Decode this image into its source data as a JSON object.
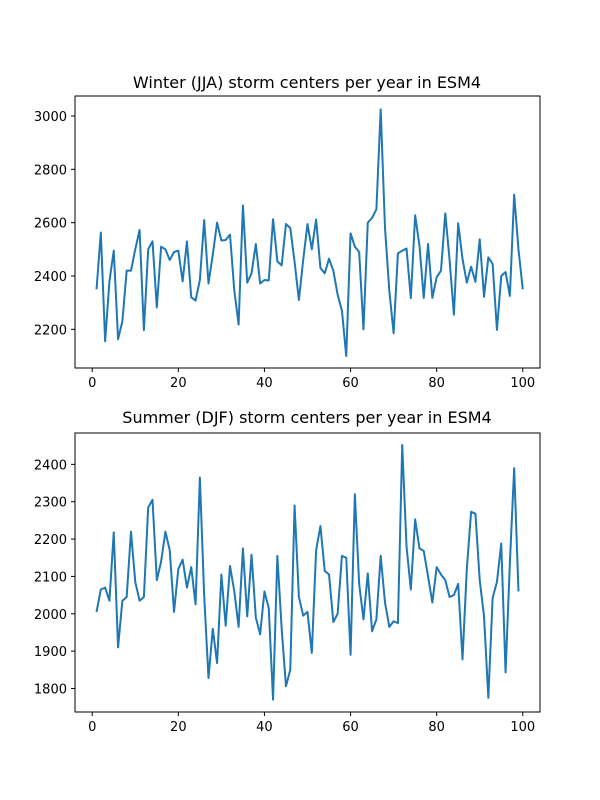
{
  "chart_data": [
    {
      "type": "line",
      "title": "Winter (JJA) storm centers per year in ESM4",
      "xlabel": "",
      "ylabel": "",
      "xlim": [
        -4,
        104
      ],
      "ylim": [
        2055,
        3075
      ],
      "xticks": [
        0,
        20,
        40,
        60,
        80,
        100
      ],
      "yticks": [
        2200,
        2400,
        2600,
        2800,
        3000
      ],
      "grid": false,
      "color": "#1f77b4",
      "series": [
        {
          "x": [
            1,
            2,
            3,
            4,
            5,
            6,
            7,
            8,
            9,
            10,
            11,
            12,
            13,
            14,
            15,
            16,
            17,
            18,
            19,
            20,
            21,
            22,
            23,
            24,
            25,
            26,
            27,
            28,
            29,
            30,
            31,
            32,
            33,
            34,
            35,
            36,
            37,
            38,
            39,
            40,
            41,
            42,
            43,
            44,
            45,
            46,
            47,
            48,
            49,
            50,
            51,
            52,
            53,
            54,
            55,
            56,
            57,
            58,
            59,
            60,
            61,
            62,
            63,
            64,
            65,
            66,
            67,
            68,
            69,
            70,
            71,
            72,
            73,
            74,
            75,
            76,
            77,
            78,
            79,
            80,
            81,
            82,
            83,
            84,
            85,
            86,
            87,
            88,
            89,
            90,
            91,
            92,
            93,
            94,
            95,
            96,
            97,
            98,
            99,
            100
          ],
          "values": [
            2350,
            2563,
            2155,
            2380,
            2495,
            2163,
            2230,
            2420,
            2420,
            2500,
            2573,
            2197,
            2500,
            2530,
            2282,
            2510,
            2500,
            2460,
            2490,
            2495,
            2380,
            2530,
            2320,
            2308,
            2385,
            2610,
            2372,
            2480,
            2600,
            2533,
            2535,
            2555,
            2345,
            2218,
            2665,
            2375,
            2410,
            2520,
            2372,
            2385,
            2383,
            2613,
            2455,
            2440,
            2595,
            2580,
            2453,
            2310,
            2460,
            2595,
            2500,
            2612,
            2430,
            2410,
            2465,
            2420,
            2330,
            2270,
            2100,
            2560,
            2510,
            2490,
            2200,
            2600,
            2618,
            2650,
            3025,
            2580,
            2345,
            2185,
            2485,
            2495,
            2503,
            2317,
            2628,
            2515,
            2318,
            2520,
            2318,
            2395,
            2420,
            2635,
            2460,
            2255,
            2598,
            2465,
            2375,
            2435,
            2378,
            2538,
            2322,
            2470,
            2445,
            2198,
            2400,
            2415,
            2325,
            2705,
            2500,
            2350
          ]
        }
      ]
    },
    {
      "type": "line",
      "title": "Summer (DJF) storm centers per year in ESM4",
      "xlabel": "",
      "ylabel": "",
      "xlim": [
        -4,
        104
      ],
      "ylim": [
        1737,
        2484
      ],
      "xticks": [
        0,
        20,
        40,
        60,
        80,
        100
      ],
      "yticks": [
        1800,
        1900,
        2000,
        2100,
        2200,
        2300,
        2400
      ],
      "grid": false,
      "color": "#1f77b4",
      "series": [
        {
          "x": [
            1,
            2,
            3,
            4,
            5,
            6,
            7,
            8,
            9,
            10,
            11,
            12,
            13,
            14,
            15,
            16,
            17,
            18,
            19,
            20,
            21,
            22,
            23,
            24,
            25,
            26,
            27,
            28,
            29,
            30,
            31,
            32,
            33,
            34,
            35,
            36,
            37,
            38,
            39,
            40,
            41,
            42,
            43,
            44,
            45,
            46,
            47,
            48,
            49,
            50,
            51,
            52,
            53,
            54,
            55,
            56,
            57,
            58,
            59,
            60,
            61,
            62,
            63,
            64,
            65,
            66,
            67,
            68,
            69,
            70,
            71,
            72,
            73,
            74,
            75,
            76,
            77,
            78,
            79,
            80,
            81,
            82,
            83,
            84,
            85,
            86,
            87,
            88,
            89,
            90,
            91,
            92,
            93,
            94,
            95,
            96,
            97,
            98,
            99
          ],
          "values": [
            2005,
            2065,
            2070,
            2035,
            2218,
            1910,
            2035,
            2045,
            2220,
            2085,
            2035,
            2045,
            2285,
            2305,
            2090,
            2140,
            2220,
            2170,
            2005,
            2120,
            2145,
            2070,
            2125,
            2025,
            2365,
            2050,
            1828,
            1960,
            1868,
            2105,
            1968,
            2128,
            2060,
            1965,
            2175,
            1993,
            2158,
            1990,
            1945,
            2060,
            2015,
            1770,
            2155,
            1960,
            1806,
            1850,
            2290,
            2045,
            1995,
            2005,
            1895,
            2170,
            2235,
            2115,
            2105,
            1978,
            2000,
            2155,
            2150,
            1890,
            2320,
            2080,
            1985,
            2108,
            1953,
            1985,
            2155,
            2030,
            1965,
            1980,
            1975,
            2452,
            2180,
            2065,
            2253,
            2175,
            2168,
            2100,
            2030,
            2125,
            2105,
            2090,
            2045,
            2050,
            2080,
            1878,
            2120,
            2273,
            2268,
            2090,
            1993,
            1775,
            2043,
            2085,
            2188,
            1843,
            2135,
            2390,
            2060
          ]
        }
      ]
    }
  ]
}
